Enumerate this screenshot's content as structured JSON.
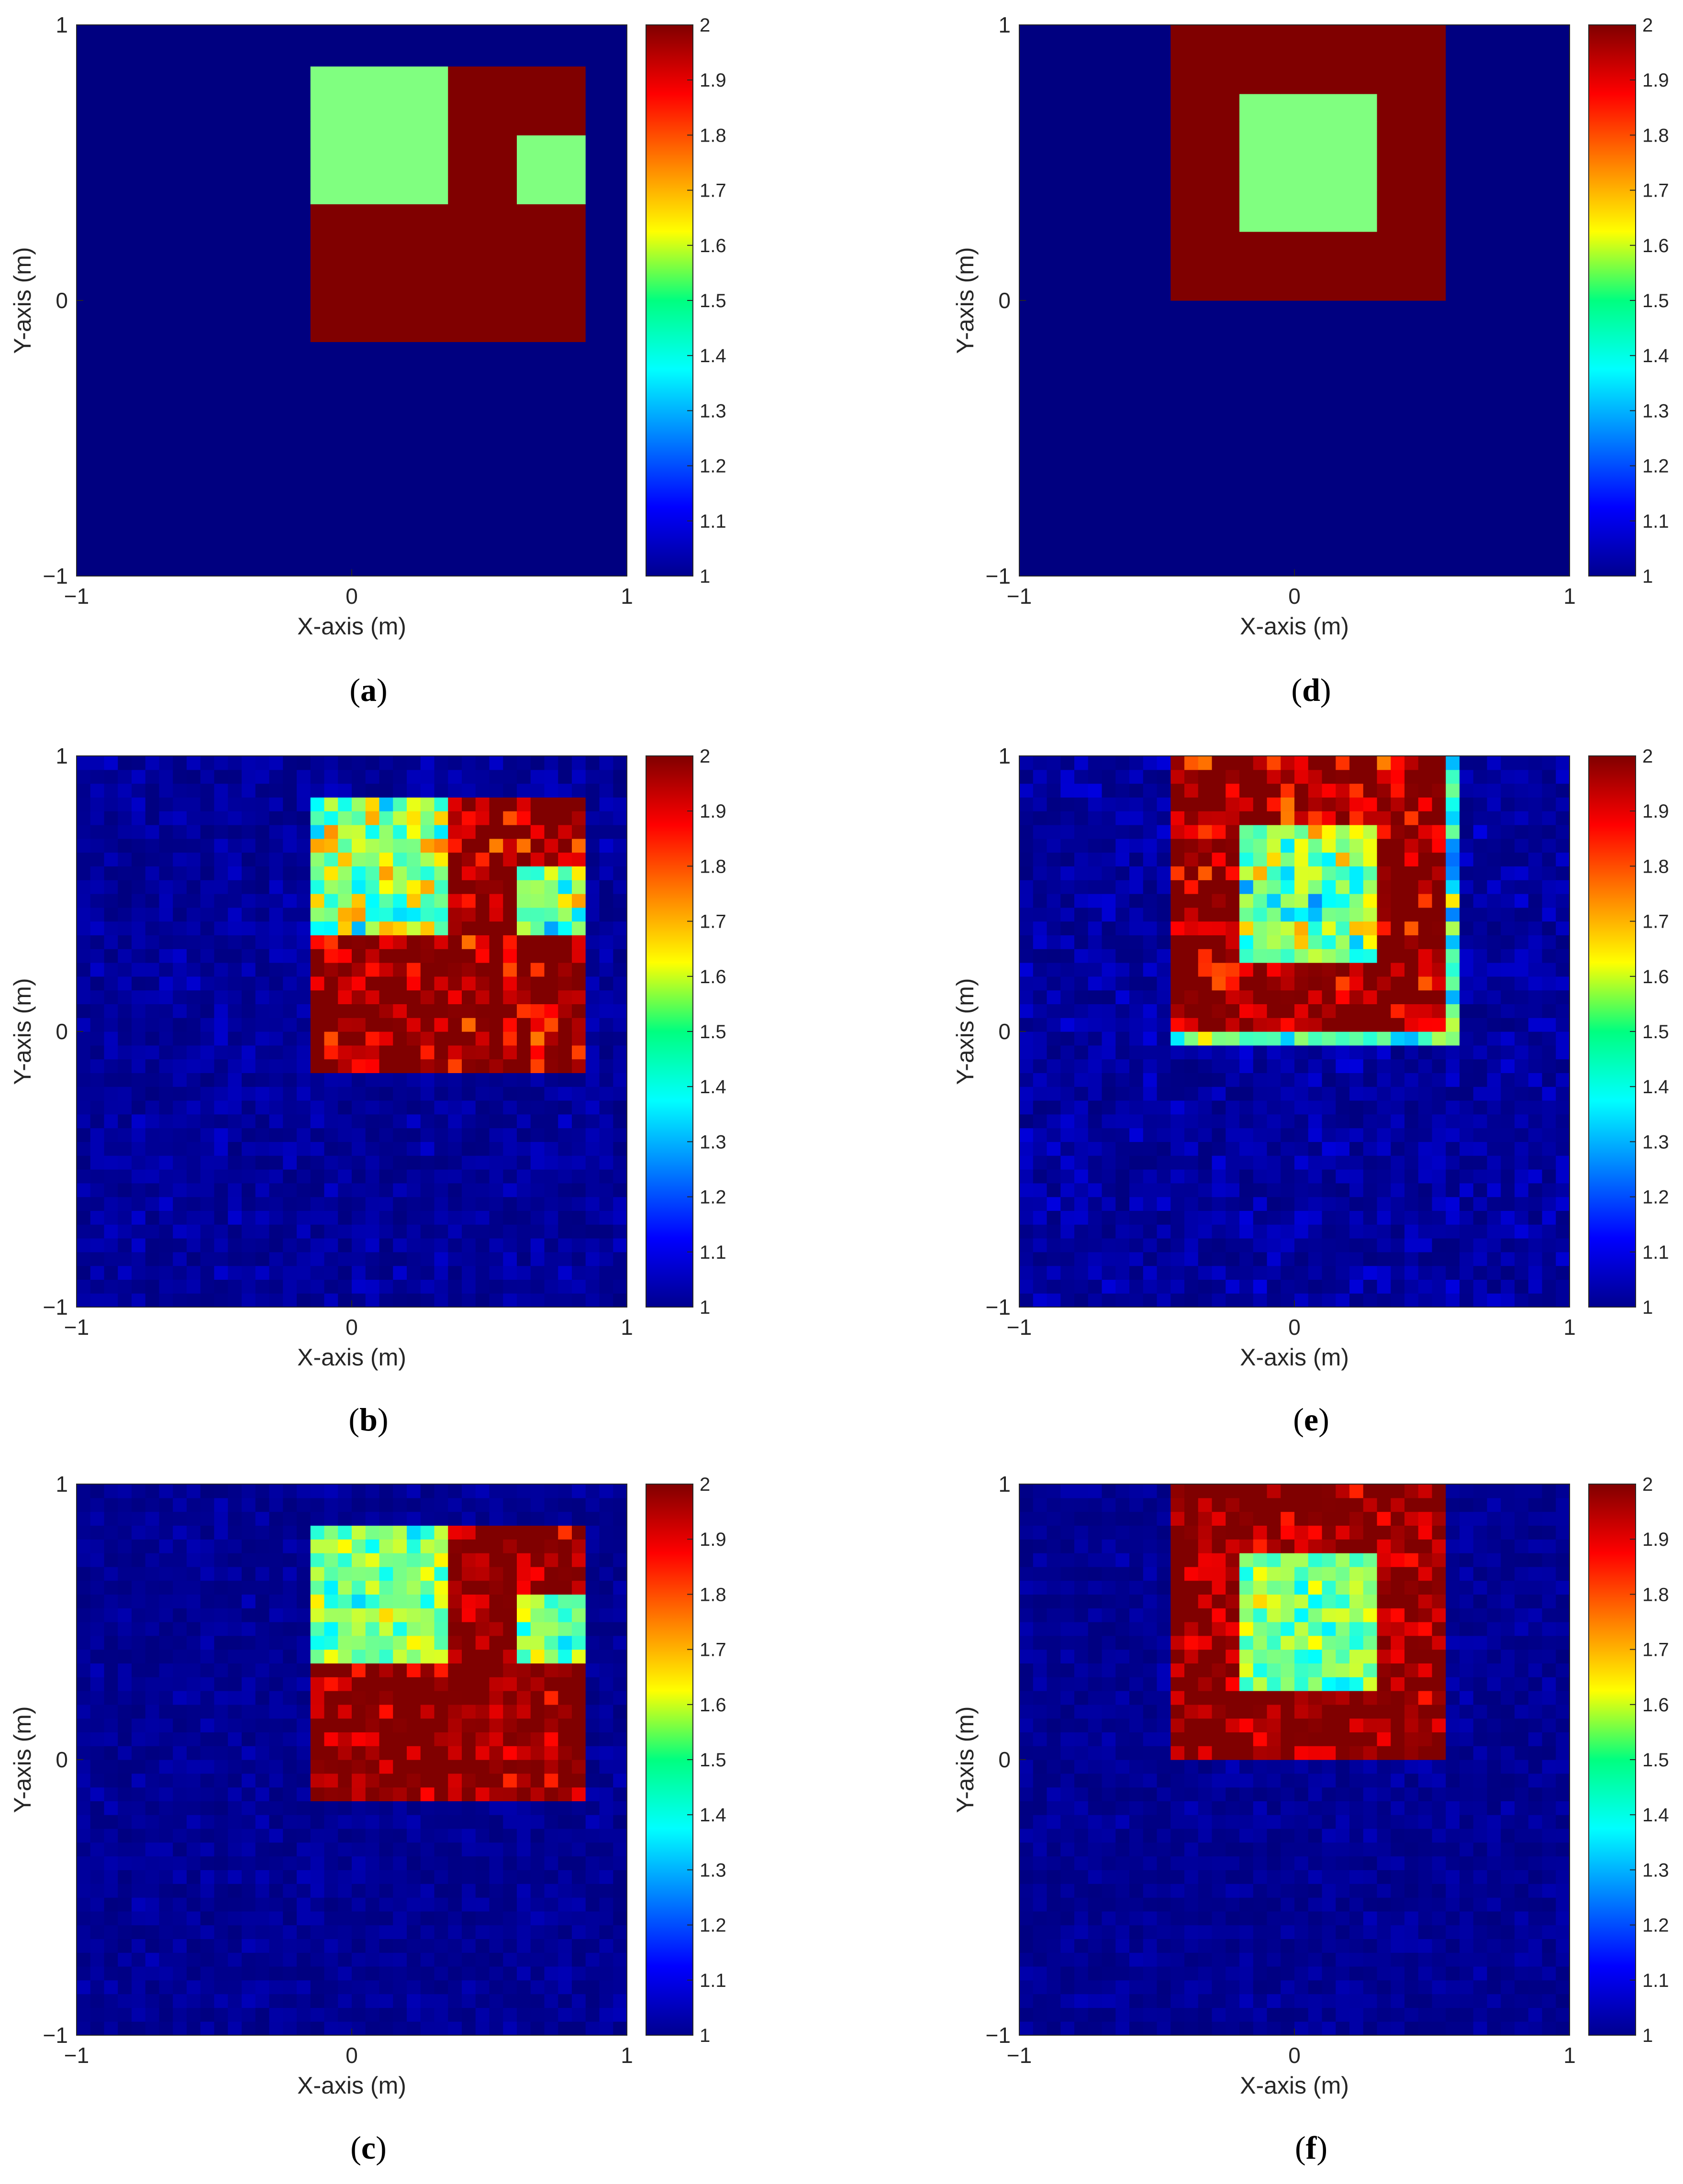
{
  "figure": {
    "panels": [
      {
        "id": "a",
        "caption_open": "(",
        "caption_letter": "a",
        "caption_close": ")"
      },
      {
        "id": "b",
        "caption_open": "(",
        "caption_letter": "b",
        "caption_close": ")"
      },
      {
        "id": "c",
        "caption_open": "(",
        "caption_letter": "c",
        "caption_close": ")"
      },
      {
        "id": "d",
        "caption_open": "(",
        "caption_letter": "d",
        "caption_close": ")"
      },
      {
        "id": "e",
        "caption_open": "(",
        "caption_letter": "e",
        "caption_close": ")"
      },
      {
        "id": "f",
        "caption_open": "(",
        "caption_letter": "f",
        "caption_close": ")"
      }
    ]
  },
  "chart_data": [
    {
      "type": "heatmap",
      "panel": "a",
      "kind": "ground-truth",
      "xlabel": "X-axis (m)",
      "ylabel": "Y-axis (m)",
      "xlim": [
        -1,
        1
      ],
      "ylim": [
        -1,
        1
      ],
      "xticks": [
        -1,
        0,
        1
      ],
      "xtick_labels": [
        "−1",
        "0",
        "1"
      ],
      "yticks": [
        -1,
        0,
        1
      ],
      "ytick_labels": [
        "−1",
        "0",
        "1"
      ],
      "grid": 40,
      "background": 1,
      "regions": [
        {
          "x": [
            -0.125,
            0.875
          ],
          "y": [
            -0.125,
            0.875
          ],
          "value": 2
        },
        {
          "x": [
            -0.125,
            0.375
          ],
          "y": [
            0.375,
            0.875
          ],
          "value": 1.5
        },
        {
          "x": [
            0.625,
            0.875
          ],
          "y": [
            0.375,
            0.625
          ],
          "value": 1.5
        }
      ],
      "colorbar": {
        "min": 1,
        "max": 2,
        "ticks": [
          "1",
          "1.1",
          "1.2",
          "1.3",
          "1.4",
          "1.5",
          "1.6",
          "1.7",
          "1.8",
          "1.9",
          "2"
        ],
        "colormap": "jet"
      }
    },
    {
      "type": "heatmap",
      "panel": "b",
      "kind": "reconstruction",
      "xlabel": "X-axis (m)",
      "ylabel": "Y-axis (m)",
      "xlim": [
        -1,
        1
      ],
      "ylim": [
        -1,
        1
      ],
      "xticks": [
        -1,
        0,
        1
      ],
      "xtick_labels": [
        "−1",
        "0",
        "1"
      ],
      "yticks": [
        -1,
        0,
        1
      ],
      "ytick_labels": [
        "−1",
        "0",
        "1"
      ],
      "grid": 40,
      "background": 1,
      "regions": [
        {
          "x": [
            -0.125,
            0.875
          ],
          "y": [
            -0.125,
            0.875
          ],
          "value": 2
        },
        {
          "x": [
            -0.125,
            0.375
          ],
          "y": [
            0.375,
            0.875
          ],
          "value": 1.5
        },
        {
          "x": [
            0.625,
            0.875
          ],
          "y": [
            0.375,
            0.625
          ],
          "value": 1.5
        }
      ],
      "noise": {
        "inside": 0.13,
        "background": 0.04,
        "seed": 11
      },
      "colorbar": {
        "min": 1,
        "max": 2,
        "ticks": [
          "1",
          "1.1",
          "1.2",
          "1.3",
          "1.4",
          "1.5",
          "1.6",
          "1.7",
          "1.8",
          "1.9",
          "2"
        ],
        "colormap": "jet"
      }
    },
    {
      "type": "heatmap",
      "panel": "c",
      "kind": "reconstruction",
      "xlabel": "X-axis (m)",
      "ylabel": "Y-axis (m)",
      "xlim": [
        -1,
        1
      ],
      "ylim": [
        -1,
        1
      ],
      "xticks": [
        -1,
        0,
        1
      ],
      "xtick_labels": [
        "−1",
        "0",
        "1"
      ],
      "yticks": [
        -1,
        0,
        1
      ],
      "ytick_labels": [
        "−1",
        "0",
        "1"
      ],
      "grid": 40,
      "background": 1,
      "regions": [
        {
          "x": [
            -0.125,
            0.875
          ],
          "y": [
            -0.125,
            0.875
          ],
          "value": 2
        },
        {
          "x": [
            -0.125,
            0.375
          ],
          "y": [
            0.375,
            0.875
          ],
          "value": 1.5
        },
        {
          "x": [
            0.625,
            0.875
          ],
          "y": [
            0.375,
            0.625
          ],
          "value": 1.5
        }
      ],
      "noise": {
        "inside": 0.09,
        "background": 0.03,
        "seed": 23
      },
      "colorbar": {
        "min": 1,
        "max": 2,
        "ticks": [
          "1",
          "1.1",
          "1.2",
          "1.3",
          "1.4",
          "1.5",
          "1.6",
          "1.7",
          "1.8",
          "1.9",
          "2"
        ],
        "colormap": "jet"
      }
    },
    {
      "type": "heatmap",
      "panel": "d",
      "kind": "ground-truth",
      "xlabel": "X-axis (m)",
      "ylabel": "Y-axis (m)",
      "xlim": [
        -1,
        1
      ],
      "ylim": [
        -1,
        1
      ],
      "xticks": [
        -1,
        0,
        1
      ],
      "xtick_labels": [
        "−1",
        "0",
        "1"
      ],
      "yticks": [
        -1,
        0,
        1
      ],
      "ytick_labels": [
        "−1",
        "0",
        "1"
      ],
      "grid": 40,
      "background": 1,
      "regions": [
        {
          "x": [
            -0.425,
            0.575
          ],
          "y": [
            0.0,
            1.0
          ],
          "value": 2
        },
        {
          "x": [
            -0.175,
            0.325
          ],
          "y": [
            0.25,
            0.75
          ],
          "value": 1.5
        }
      ],
      "colorbar": {
        "min": 1,
        "max": 2,
        "ticks": [
          "1",
          "1.1",
          "1.2",
          "1.3",
          "1.4",
          "1.5",
          "1.6",
          "1.7",
          "1.8",
          "1.9",
          "2"
        ],
        "colormap": "jet"
      }
    },
    {
      "type": "heatmap",
      "panel": "e",
      "kind": "reconstruction",
      "xlabel": "X-axis (m)",
      "ylabel": "Y-axis (m)",
      "xlim": [
        -1,
        1
      ],
      "ylim": [
        -1,
        1
      ],
      "xticks": [
        -1,
        0,
        1
      ],
      "xtick_labels": [
        "−1",
        "0",
        "1"
      ],
      "yticks": [
        -1,
        0,
        1
      ],
      "ytick_labels": [
        "−1",
        "0",
        "1"
      ],
      "grid": 40,
      "background": 1,
      "regions": [
        {
          "x": [
            -0.425,
            0.575
          ],
          "y": [
            0.0,
            1.0
          ],
          "value": 2
        },
        {
          "x": [
            -0.175,
            0.325
          ],
          "y": [
            0.25,
            0.75
          ],
          "value": 1.5
        }
      ],
      "edge": {
        "x": [
          -0.45,
          0.6
        ],
        "y": [
          -0.05,
          1.0
        ],
        "value": 1.45
      },
      "noise": {
        "inside": 0.13,
        "background": 0.05,
        "seed": 37
      },
      "colorbar": {
        "min": 1,
        "max": 2,
        "ticks": [
          "1",
          "1.1",
          "1.2",
          "1.3",
          "1.4",
          "1.5",
          "1.6",
          "1.7",
          "1.8",
          "1.9",
          "2"
        ],
        "colormap": "jet"
      }
    },
    {
      "type": "heatmap",
      "panel": "f",
      "kind": "reconstruction",
      "xlabel": "X-axis (m)",
      "ylabel": "Y-axis (m)",
      "xlim": [
        -1,
        1
      ],
      "ylim": [
        -1,
        1
      ],
      "xticks": [
        -1,
        0,
        1
      ],
      "xtick_labels": [
        "−1",
        "0",
        "1"
      ],
      "yticks": [
        -1,
        0,
        1
      ],
      "ytick_labels": [
        "−1",
        "0",
        "1"
      ],
      "grid": 40,
      "background": 1,
      "regions": [
        {
          "x": [
            -0.425,
            0.575
          ],
          "y": [
            0.0,
            1.0
          ],
          "value": 2
        },
        {
          "x": [
            -0.175,
            0.325
          ],
          "y": [
            0.25,
            0.75
          ],
          "value": 1.5
        }
      ],
      "noise": {
        "inside": 0.09,
        "background": 0.03,
        "seed": 53
      },
      "colorbar": {
        "min": 1,
        "max": 2,
        "ticks": [
          "1",
          "1.1",
          "1.2",
          "1.3",
          "1.4",
          "1.5",
          "1.6",
          "1.7",
          "1.8",
          "1.9",
          "2"
        ],
        "colormap": "jet"
      }
    }
  ]
}
